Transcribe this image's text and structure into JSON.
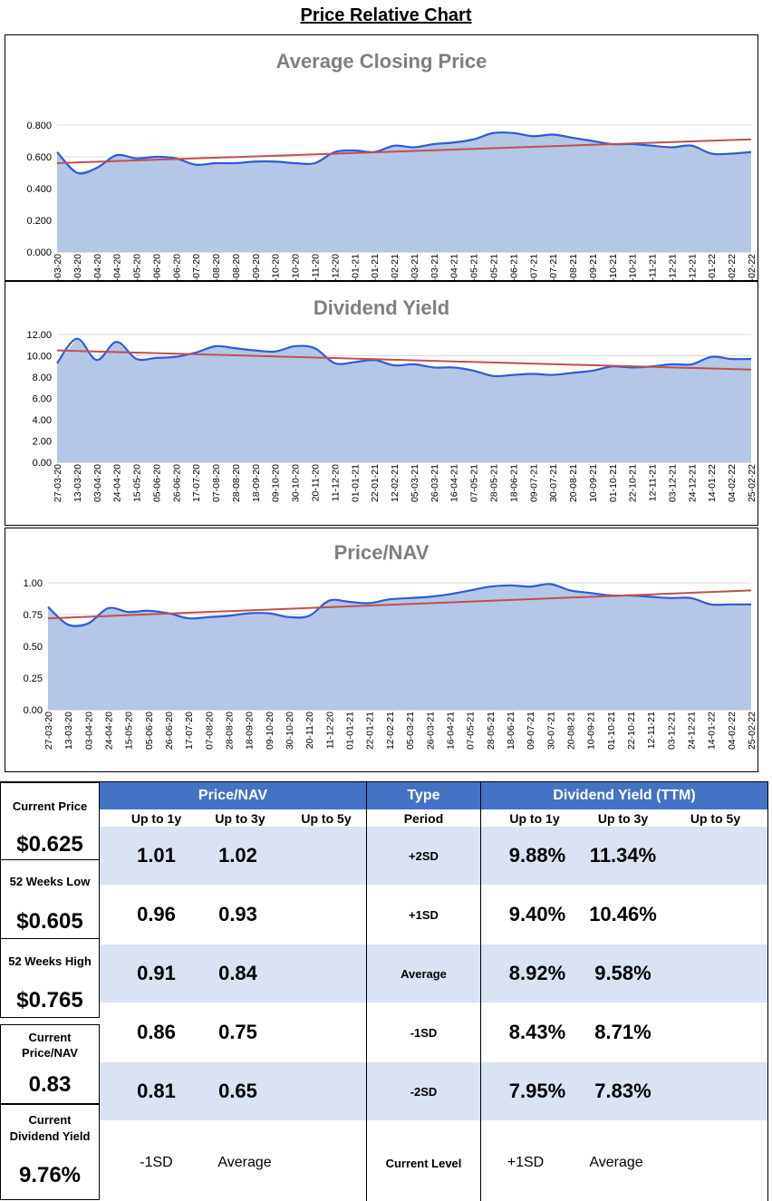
{
  "page_title": "Price Relative Chart",
  "x_labels": [
    "27-03-20",
    "13-03-20",
    "03-04-20",
    "24-04-20",
    "15-05-20",
    "05-06-20",
    "26-06-20",
    "17-07-20",
    "07-08-20",
    "28-08-20",
    "18-09-20",
    "09-10-20",
    "30-10-20",
    "20-11-20",
    "11-12-20",
    "01-01-21",
    "22-01-21",
    "12-02-21",
    "05-03-21",
    "26-03-21",
    "16-04-21",
    "07-05-21",
    "28-05-21",
    "18-06-21",
    "09-07-21",
    "30-07-21",
    "20-08-21",
    "10-09-21",
    "01-10-21",
    "22-10-21",
    "12-11-21",
    "03-12-21",
    "24-12-21",
    "14-01-22",
    "04-02-22",
    "25-02-22"
  ],
  "chart_data": [
    {
      "type": "area",
      "title": "Average Closing Price",
      "ylim": [
        0,
        0.8
      ],
      "yticks": [
        "0.000",
        "0.200",
        "0.400",
        "0.600",
        "0.800"
      ],
      "ytick_values": [
        0,
        0.2,
        0.4,
        0.6,
        0.8
      ],
      "series": [
        {
          "name": "Average Closing Price",
          "values": [
            0.63,
            0.5,
            0.53,
            0.61,
            0.59,
            0.6,
            0.59,
            0.55,
            0.56,
            0.56,
            0.57,
            0.57,
            0.56,
            0.56,
            0.63,
            0.64,
            0.63,
            0.67,
            0.66,
            0.68,
            0.69,
            0.71,
            0.75,
            0.75,
            0.73,
            0.74,
            0.72,
            0.7,
            0.68,
            0.68,
            0.67,
            0.66,
            0.67,
            0.62,
            0.62,
            0.63
          ]
        }
      ],
      "trend": [
        0.56,
        0.71
      ]
    },
    {
      "type": "area",
      "title": "Dividend Yield",
      "ylim": [
        0,
        12
      ],
      "yticks": [
        "0.00",
        "2.00",
        "4.00",
        "6.00",
        "8.00",
        "10.00",
        "12.00"
      ],
      "ytick_values": [
        0,
        2,
        4,
        6,
        8,
        10,
        12
      ],
      "series": [
        {
          "name": "Dividend Yield",
          "values": [
            9.3,
            11.6,
            9.6,
            11.3,
            9.7,
            9.8,
            9.9,
            10.3,
            10.9,
            10.7,
            10.5,
            10.4,
            10.9,
            10.7,
            9.3,
            9.4,
            9.6,
            9.1,
            9.2,
            8.9,
            8.9,
            8.6,
            8.1,
            8.2,
            8.3,
            8.2,
            8.4,
            8.6,
            9.0,
            8.9,
            9.0,
            9.2,
            9.2,
            9.9,
            9.7,
            9.7
          ]
        }
      ],
      "trend": [
        10.5,
        8.7
      ]
    },
    {
      "type": "area",
      "title": "Price/NAV",
      "ylim": [
        0,
        1.0
      ],
      "yticks": [
        "0.00",
        "0.25",
        "0.50",
        "0.75",
        "1.00"
      ],
      "ytick_values": [
        0,
        0.25,
        0.5,
        0.75,
        1.0
      ],
      "series": [
        {
          "name": "Price/NAV",
          "values": [
            0.81,
            0.67,
            0.68,
            0.8,
            0.77,
            0.78,
            0.76,
            0.72,
            0.73,
            0.74,
            0.76,
            0.76,
            0.73,
            0.74,
            0.86,
            0.85,
            0.84,
            0.87,
            0.88,
            0.89,
            0.91,
            0.94,
            0.97,
            0.98,
            0.97,
            0.99,
            0.94,
            0.92,
            0.9,
            0.9,
            0.89,
            0.88,
            0.88,
            0.83,
            0.83,
            0.83
          ]
        }
      ],
      "trend": [
        0.72,
        0.94
      ]
    }
  ],
  "table": {
    "left": [
      {
        "label": "Current Price",
        "value": "$0.625"
      },
      {
        "label": "52 Weeks Low",
        "value": "$0.605"
      },
      {
        "label": "52 Weeks High",
        "value": "$0.765"
      },
      {
        "label": "Current Price/NAV",
        "value": "0.83"
      },
      {
        "label": "Current Dividend Yield",
        "value": "9.76%"
      }
    ],
    "pnav_header": "Price/NAV",
    "type_header": "Type",
    "dy_header": "Dividend Yield (TTM)",
    "subheaders": {
      "up1": "Up to 1y",
      "up3": "Up to 3y",
      "up5": "Up to 5y",
      "period": "Period"
    },
    "rows": [
      {
        "pnav1": "1.01",
        "pnav3": "1.02",
        "type": "+2SD",
        "dy1": "9.88%",
        "dy3": "11.34%"
      },
      {
        "pnav1": "0.96",
        "pnav3": "0.93",
        "type": "+1SD",
        "dy1": "9.40%",
        "dy3": "10.46%"
      },
      {
        "pnav1": "0.91",
        "pnav3": "0.84",
        "type": "Average",
        "dy1": "8.92%",
        "dy3": "9.58%"
      },
      {
        "pnav1": "0.86",
        "pnav3": "0.75",
        "type": "-1SD",
        "dy1": "8.43%",
        "dy3": "8.71%"
      },
      {
        "pnav1": "0.81",
        "pnav3": "0.65",
        "type": "-2SD",
        "dy1": "7.95%",
        "dy3": "7.83%"
      }
    ],
    "footer": {
      "a": "-1SD",
      "b": "Average",
      "c": "Current Level",
      "d": "+1SD",
      "e": "Average"
    }
  },
  "colors": {
    "area_fill": "#b4c7e7",
    "line": "#2e5bd6",
    "trend": "#c0504d",
    "header": "#4472c4",
    "band": "#dae3f3"
  }
}
